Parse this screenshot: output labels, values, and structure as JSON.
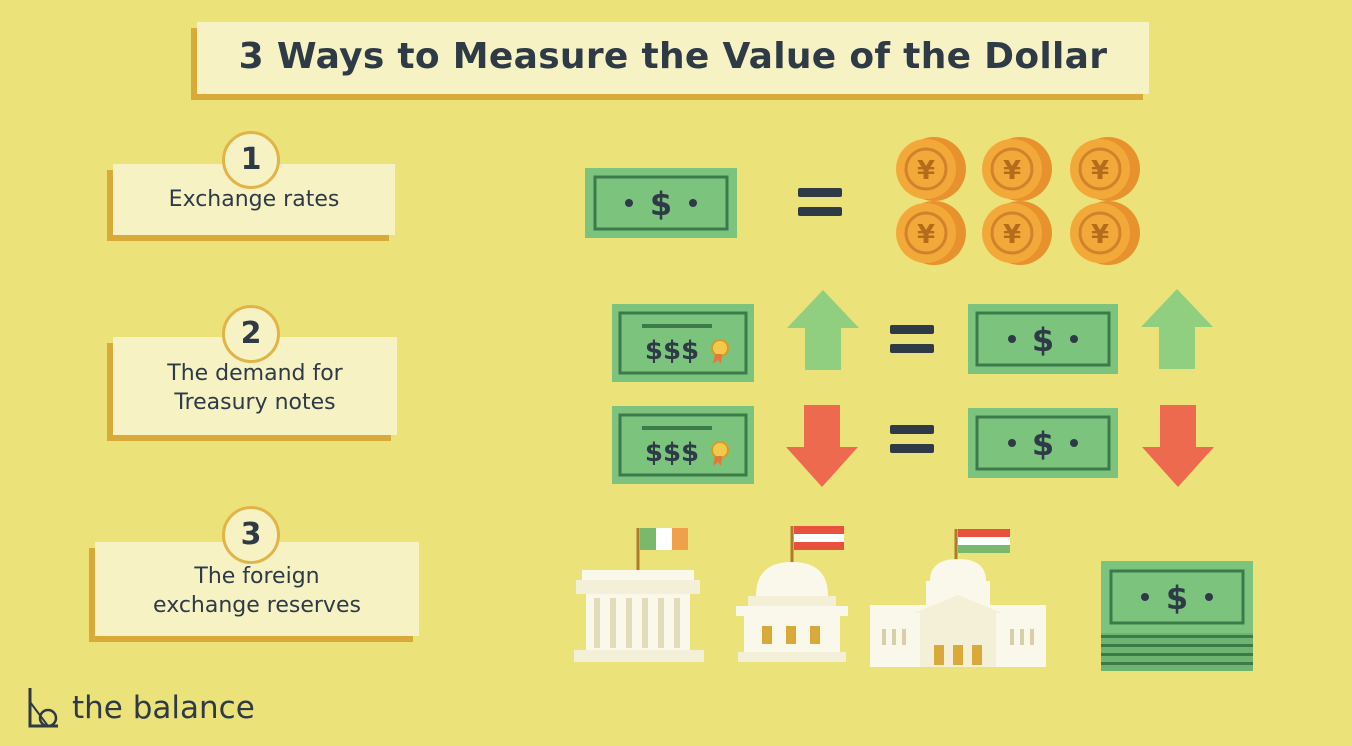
{
  "title": "3 Ways to Measure the Value of the Dollar",
  "items": [
    {
      "number": "1",
      "label_line1": "Exchange rates",
      "label_line2": ""
    },
    {
      "number": "2",
      "label_line1": "The demand for",
      "label_line2": "Treasury notes"
    },
    {
      "number": "3",
      "label_line1": "The foreign",
      "label_line2": "exchange reserves"
    }
  ],
  "glyphs": {
    "dollar": "$",
    "dollars3": "$$$",
    "yen": "¥"
  },
  "colors": {
    "background": "#ebe37a",
    "card": "#f6f2c4",
    "card_shadow": "#d9a93a",
    "text": "#2e3a46",
    "bill": "#7cc47e",
    "bill_dark": "#3d7a4a",
    "coin": "#f2a93a",
    "arrow_up": "#8fcf7f",
    "arrow_down": "#ee6a4f"
  },
  "icons": [
    "dollar-bill-icon",
    "yen-coin-icon",
    "treasury-note-icon",
    "arrow-up-icon",
    "arrow-down-icon",
    "bank-building-icon",
    "ireland-flag-icon",
    "austria-flag-icon",
    "hungary-flag-icon",
    "cash-stack-icon"
  ],
  "logo": {
    "text": "the balance"
  }
}
